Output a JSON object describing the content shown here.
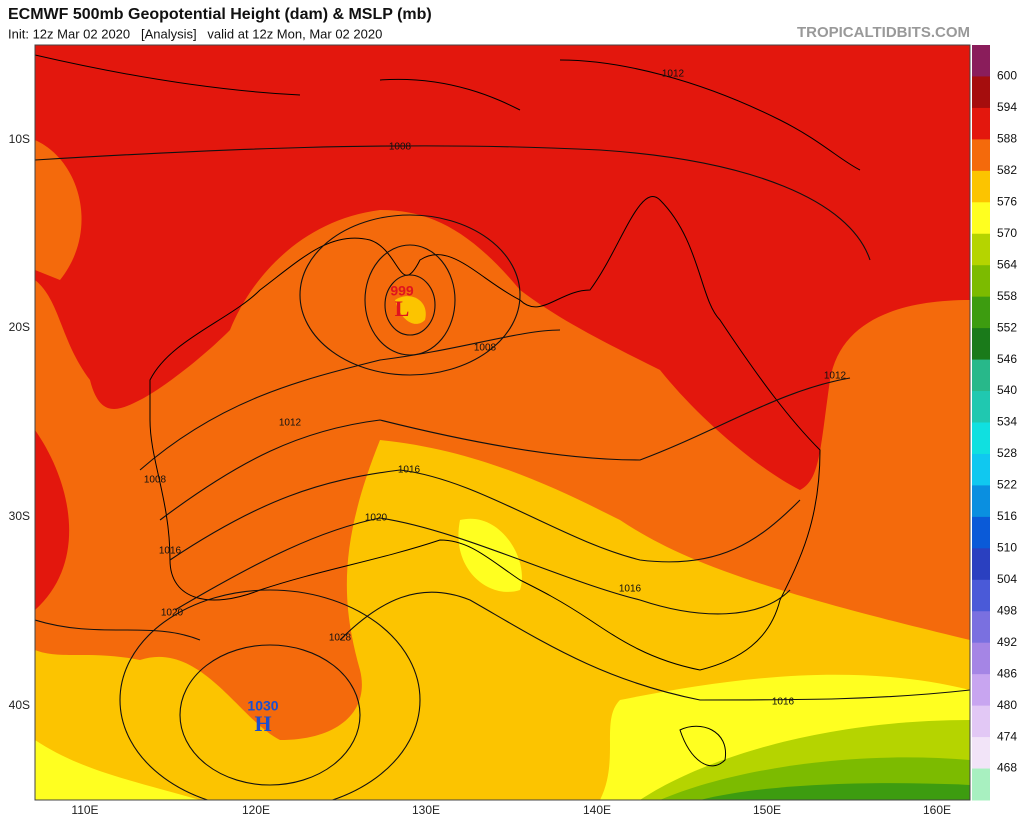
{
  "header": {
    "title": "ECMWF 500mb Geopotential Height (dam) & MSLP (mb)",
    "subtitle": "Init: 12z Mar 02 2020   [Analysis]   valid at 12z Mon, Mar 02 2020",
    "source": "TROPICALTIDBITS.COM"
  },
  "map": {
    "lat_labels": [
      "10S",
      "20S",
      "30S",
      "40S"
    ],
    "lon_labels": [
      "110E",
      "120E",
      "130E",
      "140E",
      "150E",
      "160E"
    ],
    "contour_labels": [
      1008,
      1012,
      1008,
      1012,
      1012,
      1016,
      1008,
      1020,
      1016,
      1016,
      1020,
      1028,
      1016
    ],
    "pressure_centers": [
      {
        "value": 999,
        "symbol": "L",
        "color": "#e0141e"
      },
      {
        "value": 1030,
        "symbol": "H",
        "color": "#1a4fd0"
      }
    ]
  },
  "colorbar": {
    "labels": [
      600,
      594,
      588,
      582,
      576,
      570,
      564,
      558,
      552,
      546,
      540,
      534,
      528,
      522,
      516,
      510,
      504,
      498,
      492,
      486,
      480,
      474,
      468
    ],
    "colors": [
      "#8a1d5b",
      "#a50d0d",
      "#e3170d",
      "#f46a0c",
      "#fcc400",
      "#ffff20",
      "#b5d400",
      "#7cbb00",
      "#3d9c10",
      "#1a7a1a",
      "#28b88a",
      "#20c8b0",
      "#10e0e0",
      "#10c8f0",
      "#0a8fe0",
      "#0a5ad8",
      "#2a40c0",
      "#4a5ad8",
      "#7a70e0",
      "#a585e5",
      "#c8a5f0",
      "#e2c8f5",
      "#f2e4f8",
      "#a8f0c0"
    ]
  }
}
